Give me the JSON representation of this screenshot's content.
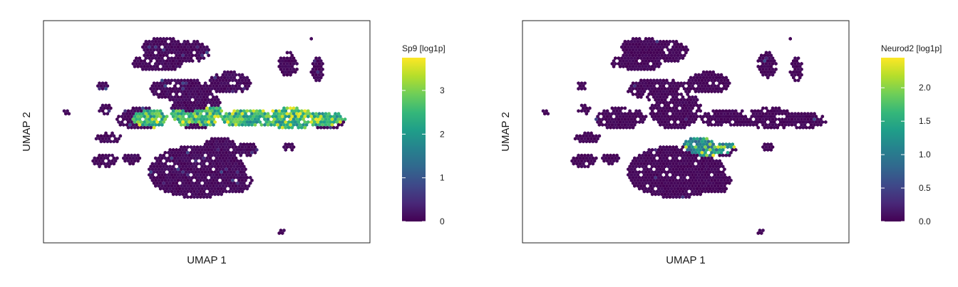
{
  "chart_data": [
    {
      "type": "heatmap",
      "subtype": "umap-hexbin-embedding",
      "xlabel": "UMAP 1",
      "ylabel": "UMAP 2",
      "colorbar": {
        "title": "Sp9 [log1p]",
        "ticks": [
          "0",
          "1",
          "2",
          "3"
        ],
        "tick_values": [
          0,
          1,
          2,
          3
        ],
        "range": [
          0,
          3.75
        ],
        "colormap": "viridis"
      },
      "grid": false,
      "axis_ticks": false,
      "highlight": "elevated expression in elongated horizontal band spanning center to right (values ~2-3.5)",
      "background_color": "#440154"
    },
    {
      "type": "heatmap",
      "subtype": "umap-hexbin-embedding",
      "xlabel": "UMAP 1",
      "ylabel": "UMAP 2",
      "colorbar": {
        "title": "Neurod2 [log1p]",
        "ticks": [
          "0.0",
          "0.5",
          "1.0",
          "1.5",
          "2.0"
        ],
        "tick_values": [
          0.0,
          0.5,
          1.0,
          1.5,
          2.0
        ],
        "range": [
          0,
          2.45
        ],
        "colormap": "viridis"
      },
      "grid": false,
      "axis_ticks": false,
      "highlight": "elevated expression in small compact cluster below center (values ~1-2.4)",
      "background_color": "#440154"
    }
  ],
  "colors": {
    "viridis": [
      "#440154",
      "#482878",
      "#3e4989",
      "#31688e",
      "#26828e",
      "#1f9e89",
      "#35b779",
      "#6ece58",
      "#b5de2b",
      "#fde725"
    ],
    "frame": "#222222"
  }
}
